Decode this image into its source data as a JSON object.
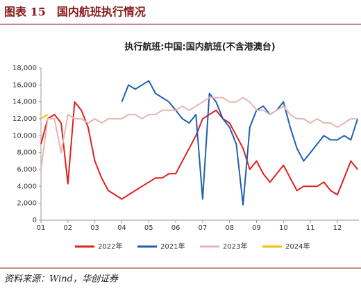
{
  "header": {
    "title": "图表 15　国内航班执行情况"
  },
  "chart_data": {
    "type": "line",
    "title": "执行航班:中国:国内航班(不含港澳台)",
    "x": [
      1,
      1.25,
      1.5,
      1.75,
      2,
      2.25,
      2.5,
      2.75,
      3,
      3.25,
      3.5,
      3.75,
      4,
      4.25,
      4.5,
      4.75,
      5,
      5.25,
      5.5,
      5.75,
      6,
      6.25,
      6.5,
      6.75,
      7,
      7.25,
      7.5,
      7.75,
      8,
      8.25,
      8.5,
      8.75,
      9,
      9.25,
      9.5,
      9.75,
      10,
      10.25,
      10.5,
      10.75,
      11,
      11.25,
      11.5,
      11.75,
      12,
      12.25,
      12.5,
      12.75
    ],
    "xlim": [
      1,
      12.8
    ],
    "xticks": [
      {
        "value": 1,
        "label": "01"
      },
      {
        "value": 2,
        "label": "02"
      },
      {
        "value": 3,
        "label": "03"
      },
      {
        "value": 4,
        "label": "04"
      },
      {
        "value": 5,
        "label": "05"
      },
      {
        "value": 6,
        "label": "06"
      },
      {
        "value": 7,
        "label": "07"
      },
      {
        "value": 8,
        "label": "08"
      },
      {
        "value": 9,
        "label": "09"
      },
      {
        "value": 10,
        "label": "10"
      },
      {
        "value": 11,
        "label": "11"
      },
      {
        "value": 12,
        "label": "12"
      }
    ],
    "ylim": [
      0,
      18000
    ],
    "yticks": [
      0,
      {
        "value": 2000,
        "label": "2,000"
      },
      {
        "value": 4000,
        "label": "4,000"
      },
      {
        "value": 6000,
        "label": "6,000"
      },
      {
        "value": 8000,
        "label": "8,000"
      },
      {
        "value": 10000,
        "label": "10,000"
      },
      {
        "value": 12000,
        "label": "12,000"
      },
      {
        "value": 14000,
        "label": "14,000"
      },
      {
        "value": 16000,
        "label": "16,000"
      },
      {
        "value": 18000,
        "label": "18,000"
      }
    ],
    "series": [
      {
        "name": "2022年",
        "color": "#e0201e",
        "values": [
          9000,
          12000,
          12500,
          11500,
          4300,
          14000,
          13000,
          11000,
          7000,
          5000,
          3500,
          3000,
          2500,
          3000,
          3500,
          4000,
          4500,
          5000,
          5000,
          5500,
          5500,
          7000,
          8500,
          10000,
          12000,
          12500,
          13000,
          12000,
          11500,
          10000,
          8500,
          6000,
          7000,
          5500,
          4500,
          5500,
          6500,
          5000,
          3500,
          4000,
          4000,
          4000,
          4500,
          3500,
          3000,
          5000,
          7000,
          6000
        ]
      },
      {
        "name": "2021年",
        "color": "#1f5fb0",
        "values": [
          null,
          null,
          null,
          null,
          null,
          null,
          null,
          null,
          null,
          null,
          null,
          null,
          14000,
          16000,
          15500,
          16000,
          16500,
          15000,
          14500,
          14000,
          13000,
          12000,
          11500,
          12500,
          2500,
          15000,
          14000,
          12000,
          11000,
          9000,
          1800,
          11000,
          13000,
          13500,
          12500,
          13000,
          14000,
          11000,
          8500,
          7000,
          8000,
          9000,
          10000,
          9500,
          9500,
          10000,
          9500,
          12000
        ]
      },
      {
        "name": "2023年",
        "color": "#e8b4b4",
        "values": [
          6000,
          12000,
          12000,
          8000,
          12500,
          12000,
          12000,
          11500,
          12000,
          11500,
          12000,
          12000,
          12000,
          12500,
          12500,
          12000,
          12500,
          12500,
          13000,
          13000,
          13000,
          13500,
          13000,
          13500,
          14000,
          14500,
          14500,
          14500,
          14000,
          14000,
          14500,
          14000,
          13000,
          13000,
          12500,
          13000,
          13500,
          12500,
          12000,
          12000,
          11500,
          12000,
          11500,
          11500,
          11000,
          11500,
          12000,
          12000
        ]
      },
      {
        "name": "2024年",
        "color": "#f5c000",
        "values": [
          12000,
          12500,
          null,
          null,
          null,
          null,
          null,
          null,
          null,
          null,
          null,
          null,
          null,
          null,
          null,
          null,
          null,
          null,
          null,
          null,
          null,
          null,
          null,
          null,
          null,
          null,
          null,
          null,
          null,
          null,
          null,
          null,
          null,
          null,
          null,
          null,
          null,
          null,
          null,
          null,
          null,
          null,
          null,
          null,
          null,
          null,
          null,
          null
        ]
      }
    ]
  },
  "footer": {
    "source": "资料来源：Wind，华创证券"
  }
}
